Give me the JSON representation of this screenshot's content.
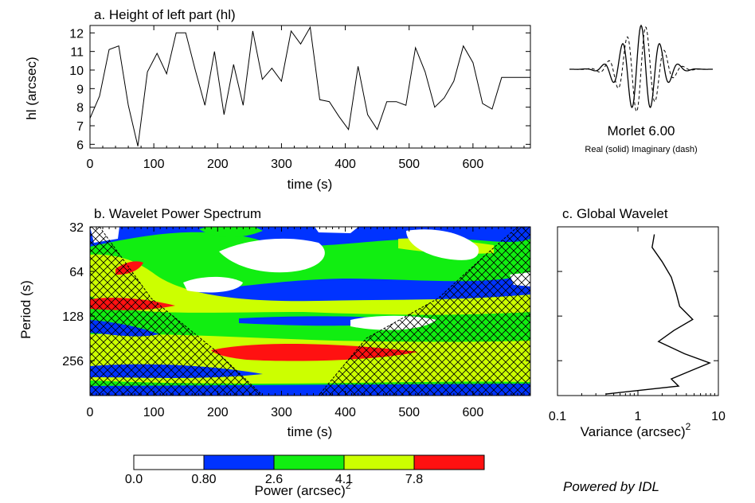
{
  "chart_data": [
    {
      "id": "a",
      "type": "line",
      "title": "a. Height of left part (hl)",
      "xlabel": "time (s)",
      "ylabel": "hl (arcsec)",
      "xlim": [
        0,
        690
      ],
      "ylim": [
        5.8,
        12.4
      ],
      "x_ticks": [
        0,
        100,
        200,
        300,
        400,
        500,
        600
      ],
      "y_ticks": [
        6,
        7,
        8,
        9,
        10,
        11,
        12
      ],
      "x": [
        0,
        15,
        30,
        45,
        60,
        75,
        90,
        105,
        120,
        135,
        150,
        165,
        180,
        195,
        210,
        225,
        240,
        255,
        270,
        285,
        300,
        315,
        330,
        345,
        360,
        375,
        390,
        405,
        420,
        435,
        450,
        465,
        480,
        495,
        510,
        525,
        540,
        555,
        570,
        585,
        600,
        615,
        630,
        645,
        660,
        675,
        690
      ],
      "values": [
        7.4,
        8.6,
        11.1,
        11.3,
        8.1,
        5.9,
        9.9,
        10.9,
        9.8,
        12.0,
        12.0,
        10.0,
        8.1,
        11.0,
        7.6,
        10.3,
        8.1,
        12.1,
        9.5,
        10.1,
        9.4,
        12.1,
        11.4,
        12.3,
        8.4,
        8.3,
        7.5,
        6.8,
        10.2,
        7.6,
        6.8,
        8.3,
        8.3,
        8.1,
        11.2,
        9.9,
        8.0,
        8.5,
        9.4,
        11.3,
        10.4,
        8.2,
        7.9,
        9.6,
        9.6,
        9.6,
        9.6
      ]
    },
    {
      "id": "b",
      "type": "heatmap",
      "title": "b. Wavelet Power Spectrum",
      "xlabel": "time (s)",
      "ylabel": "Period (s)",
      "xlim": [
        0,
        690
      ],
      "y_ticks": [
        32,
        64,
        128,
        256
      ],
      "x_ticks": [
        0,
        100,
        200,
        300,
        400,
        500,
        600
      ],
      "y_scale": "log2",
      "y_range": [
        32,
        440
      ],
      "color_levels": [
        {
          "label": "0.0",
          "color": "#ffffff"
        },
        {
          "label": "0.80",
          "color": "#0033ff"
        },
        {
          "label": "2.6",
          "color": "#11ee11"
        },
        {
          "label": "4.1",
          "color": "#ccff00"
        },
        {
          "label": "7.8",
          "color": "#ff1111"
        }
      ],
      "colorbar_label": "Power (arcsec)",
      "colorbar_superscript": "2",
      "colorbar_ticks": [
        "0.0",
        "0.80",
        "2.6",
        "4.1",
        "7.8"
      ],
      "coi_hatched": true
    },
    {
      "id": "c",
      "type": "line",
      "title": "c. Global Wavelet",
      "xlabel": "Variance (arcsec)",
      "xlabel_superscript": "2",
      "x_scale": "log",
      "xlim": [
        0.1,
        10
      ],
      "x_ticks": [
        "0.1",
        "1",
        "10"
      ],
      "period": [
        36,
        44,
        55,
        70,
        90,
        110,
        135,
        160,
        190,
        230,
        265,
        300,
        340,
        380,
        430
      ],
      "values": [
        1.6,
        1.5,
        2.0,
        2.6,
        3.0,
        3.3,
        4.8,
        2.8,
        1.8,
        3.8,
        7.8,
        4.5,
        2.6,
        3.2,
        0.4
      ]
    }
  ],
  "wavelet": {
    "title": "Morlet 6.00",
    "caption": "Real (solid)  Imaginary (dash)"
  },
  "credit": "Powered by IDL"
}
